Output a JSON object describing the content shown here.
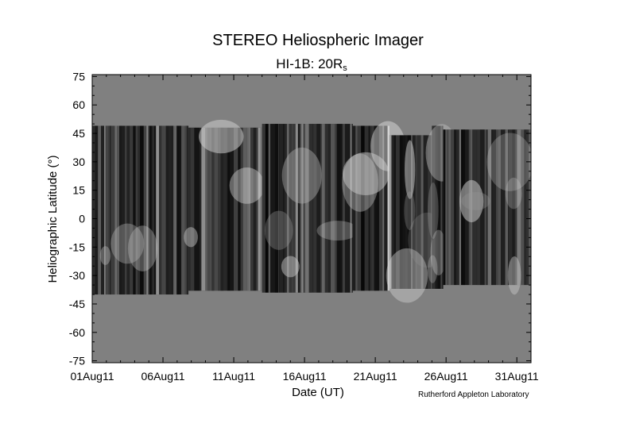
{
  "chart_data": {
    "type": "heatmap",
    "title": "STEREO Heliospheric Imager",
    "subtitle_main": "HI-1B: 20R",
    "subtitle_sub": "s",
    "xlabel": "Date (UT)",
    "ylabel": "Heliographic Latitude (°)",
    "credit": "Rutherford Appleton Laboratory",
    "x_ticks": [
      "01Aug11",
      "06Aug11",
      "11Aug11",
      "16Aug11",
      "21Aug11",
      "26Aug11",
      "31Aug11"
    ],
    "y_ticks": [
      75,
      60,
      45,
      30,
      15,
      0,
      -15,
      -30,
      -45,
      -60,
      -75
    ],
    "xlim_days": [
      0,
      31
    ],
    "ylim": [
      -76,
      76
    ],
    "colormap": "grayscale",
    "nodata_color": "#808080",
    "coverage": [
      {
        "start_day": 0.0,
        "end_day": 6.8,
        "lat_max": 49,
        "lat_min": -40
      },
      {
        "start_day": 6.8,
        "end_day": 12.0,
        "lat_max": 48,
        "lat_min": -38
      },
      {
        "start_day": 12.0,
        "end_day": 18.4,
        "lat_max": 50,
        "lat_min": -39
      },
      {
        "start_day": 18.4,
        "end_day": 21.0,
        "lat_max": 49,
        "lat_min": -38
      },
      {
        "start_day": 21.0,
        "end_day": 24.0,
        "lat_max": 44,
        "lat_min": -37
      },
      {
        "start_day": 24.0,
        "end_day": 24.8,
        "lat_max": 49,
        "lat_min": -37
      },
      {
        "start_day": 24.8,
        "end_day": 31.0,
        "lat_max": 47,
        "lat_min": -35
      }
    ]
  }
}
